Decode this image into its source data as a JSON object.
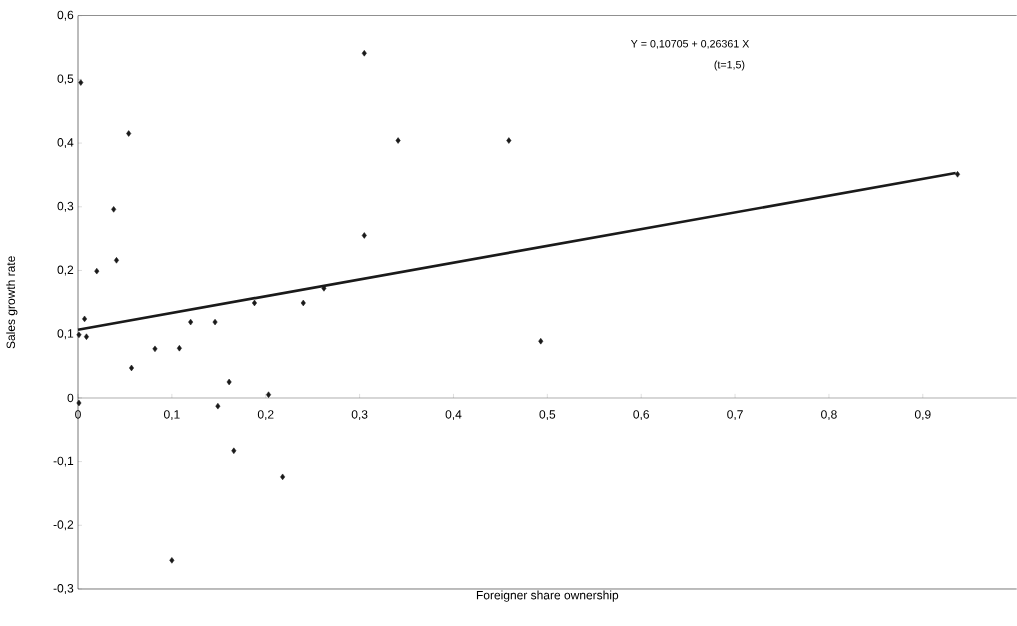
{
  "chart_data": {
    "type": "scatter",
    "xlabel": "Foreigner share ownership",
    "ylabel": "Sales  growth rate",
    "annotations": [
      "Y = 0,10705 + 0,26361 X",
      "(t=1,5)"
    ],
    "xlim": [
      0,
      1
    ],
    "ylim": [
      -0.3,
      0.6
    ],
    "xticks": [
      0,
      {
        "value": 0.1,
        "label": "0,1"
      },
      {
        "value": 0.2,
        "label": "0,2"
      },
      {
        "value": 0.3,
        "label": "0,3"
      },
      {
        "value": 0.4,
        "label": "0,4"
      },
      {
        "value": 0.5,
        "label": "0,5"
      },
      {
        "value": 0.6,
        "label": "0,6"
      },
      {
        "value": 0.7,
        "label": "0,7"
      },
      {
        "value": 0.8,
        "label": "0,8"
      },
      {
        "value": 0.9,
        "label": "0,9"
      }
    ],
    "yticks": [
      {
        "value": -0.3,
        "label": "-0,3"
      },
      {
        "value": -0.2,
        "label": "-0,2"
      },
      {
        "value": -0.1,
        "label": "-0,1"
      },
      0,
      {
        "value": 0.1,
        "label": "0,1"
      },
      {
        "value": 0.2,
        "label": "0,2"
      },
      {
        "value": 0.3,
        "label": "0,3"
      },
      {
        "value": 0.4,
        "label": "0,4"
      },
      {
        "value": 0.5,
        "label": "0,5"
      },
      {
        "value": 0.6,
        "label": "0,6"
      }
    ],
    "series": [
      {
        "marker": "diamond",
        "color": "#1a1a1a",
        "x": [
          0.003,
          0.054,
          0.038,
          0.041,
          0.02,
          0.188,
          0.24,
          0.262,
          0.007,
          0.001,
          0.009,
          0.12,
          0.146,
          0.082,
          0.108,
          0.057,
          0.161,
          0.203,
          0.001,
          0.149,
          0.166,
          0.218,
          0.1,
          0.305,
          0.341,
          0.459,
          0.305,
          0.493,
          0.937
        ],
        "values": [
          0.495,
          0.415,
          0.296,
          0.216,
          0.199,
          0.149,
          0.149,
          0.172,
          0.124,
          0.099,
          0.096,
          0.119,
          0.119,
          0.077,
          0.078,
          0.047,
          0.025,
          0.005,
          -0.008,
          -0.013,
          -0.083,
          -0.124,
          -0.255,
          0.541,
          0.404,
          0.404,
          0.255,
          0.089,
          0.351
        ]
      },
      {
        "type": "line",
        "marker": "none",
        "color": "#1a1a1a",
        "x": [
          0,
          0.935
        ],
        "values": [
          0.107,
          0.353
        ]
      }
    ]
  }
}
